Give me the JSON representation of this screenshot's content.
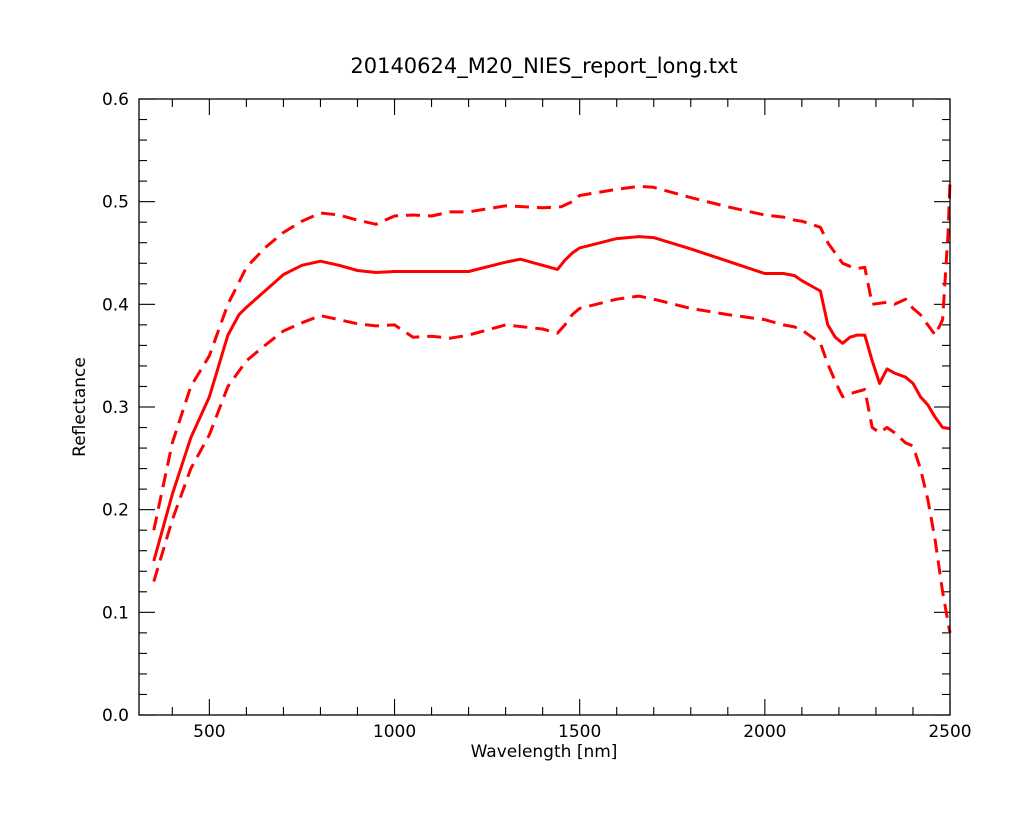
{
  "chart_data": {
    "type": "line",
    "title": "20140624_M20_NIES_report_long.txt",
    "xlabel": "Wavelength [nm]",
    "ylabel": "Reflectance",
    "xlim": [
      310,
      2500
    ],
    "ylim": [
      0.0,
      0.6
    ],
    "xticks": [
      500,
      1000,
      1500,
      2000,
      2500
    ],
    "xtick_labels": [
      "500",
      "1000",
      "1500",
      "2000",
      "2500"
    ],
    "yticks": [
      0.0,
      0.1,
      0.2,
      0.3,
      0.4,
      0.5,
      0.6
    ],
    "ytick_labels": [
      "0.0",
      "0.1",
      "0.2",
      "0.3",
      "0.4",
      "0.5",
      "0.6"
    ],
    "grid": false,
    "legend": "none",
    "series_color": "#ff0000",
    "series": [
      {
        "style": "solid",
        "x": [
          350,
          400,
          450,
          500,
          550,
          580,
          600,
          650,
          700,
          750,
          800,
          850,
          900,
          950,
          1000,
          1100,
          1200,
          1300,
          1340,
          1400,
          1440,
          1460,
          1480,
          1500,
          1600,
          1660,
          1700,
          1800,
          1900,
          2000,
          2050,
          2080,
          2100,
          2150,
          2170,
          2190,
          2210,
          2230,
          2250,
          2270,
          2290,
          2310,
          2330,
          2350,
          2380,
          2400,
          2420,
          2440,
          2460,
          2480,
          2500
        ],
        "y": [
          0.15,
          0.215,
          0.27,
          0.31,
          0.37,
          0.39,
          0.397,
          0.413,
          0.429,
          0.438,
          0.442,
          0.438,
          0.433,
          0.431,
          0.432,
          0.432,
          0.432,
          0.441,
          0.444,
          0.438,
          0.434,
          0.443,
          0.45,
          0.455,
          0.464,
          0.466,
          0.465,
          0.454,
          0.442,
          0.43,
          0.43,
          0.428,
          0.423,
          0.413,
          0.38,
          0.368,
          0.362,
          0.368,
          0.37,
          0.37,
          0.345,
          0.323,
          0.337,
          0.333,
          0.329,
          0.323,
          0.31,
          0.302,
          0.29,
          0.28,
          0.279
        ]
      },
      {
        "style": "dashed",
        "x": [
          350,
          400,
          450,
          500,
          550,
          600,
          650,
          700,
          750,
          800,
          850,
          900,
          950,
          1000,
          1050,
          1100,
          1150,
          1200,
          1300,
          1400,
          1450,
          1480,
          1500,
          1600,
          1660,
          1700,
          1800,
          1900,
          2000,
          2050,
          2080,
          2100,
          2150,
          2170,
          2190,
          2210,
          2230,
          2250,
          2270,
          2290,
          2310,
          2330,
          2350,
          2380,
          2400,
          2420,
          2440,
          2460,
          2480,
          2495,
          2500
        ],
        "y": [
          0.18,
          0.265,
          0.32,
          0.35,
          0.4,
          0.436,
          0.455,
          0.47,
          0.481,
          0.489,
          0.487,
          0.482,
          0.478,
          0.486,
          0.487,
          0.486,
          0.49,
          0.49,
          0.496,
          0.494,
          0.495,
          0.5,
          0.506,
          0.512,
          0.515,
          0.514,
          0.504,
          0.495,
          0.487,
          0.485,
          0.482,
          0.481,
          0.475,
          0.46,
          0.45,
          0.44,
          0.437,
          0.435,
          0.436,
          0.4,
          0.401,
          0.402,
          0.4,
          0.405,
          0.396,
          0.39,
          0.38,
          0.37,
          0.385,
          0.47,
          0.52
        ]
      },
      {
        "style": "dashed",
        "x": [
          350,
          400,
          450,
          500,
          550,
          600,
          650,
          700,
          750,
          800,
          850,
          900,
          950,
          1000,
          1050,
          1100,
          1150,
          1200,
          1300,
          1400,
          1440,
          1460,
          1480,
          1500,
          1600,
          1660,
          1700,
          1800,
          1900,
          2000,
          2050,
          2080,
          2100,
          2150,
          2170,
          2190,
          2210,
          2230,
          2250,
          2270,
          2290,
          2310,
          2330,
          2350,
          2380,
          2400,
          2420,
          2440,
          2460,
          2480,
          2495,
          2500
        ],
        "y": [
          0.13,
          0.19,
          0.24,
          0.273,
          0.32,
          0.345,
          0.36,
          0.374,
          0.382,
          0.389,
          0.385,
          0.381,
          0.379,
          0.38,
          0.368,
          0.369,
          0.367,
          0.37,
          0.38,
          0.376,
          0.372,
          0.38,
          0.39,
          0.396,
          0.405,
          0.408,
          0.405,
          0.396,
          0.39,
          0.385,
          0.38,
          0.378,
          0.375,
          0.362,
          0.342,
          0.325,
          0.31,
          0.313,
          0.315,
          0.317,
          0.28,
          0.275,
          0.28,
          0.275,
          0.265,
          0.262,
          0.24,
          0.21,
          0.17,
          0.12,
          0.09,
          0.08
        ]
      }
    ]
  }
}
